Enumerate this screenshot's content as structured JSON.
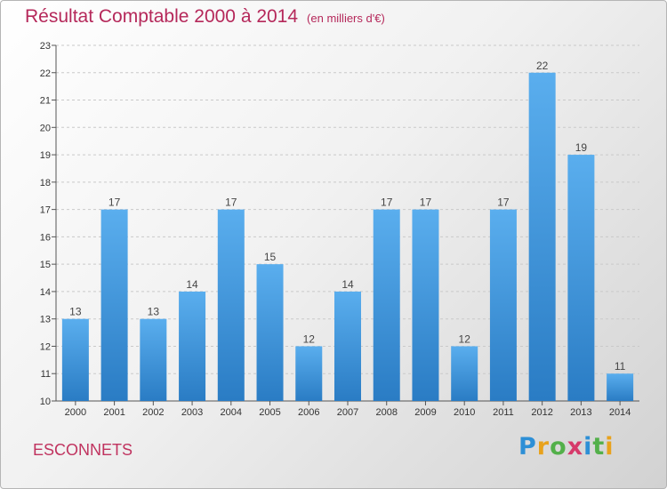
{
  "title": "Résultat Comptable 2000 à 2014",
  "subtitle": "(en milliers d'€)",
  "commune": "ESCONNETS",
  "logo": {
    "letters": [
      {
        "ch": "P",
        "color": "#2d8fd6"
      },
      {
        "ch": "r",
        "color": "#e8a21c"
      },
      {
        "ch": "o",
        "color": "#53b04a"
      },
      {
        "ch": "x",
        "color": "#d63a6a"
      },
      {
        "ch": "i",
        "color": "#2d8fd6"
      },
      {
        "ch": "t",
        "color": "#53b04a"
      },
      {
        "ch": "i",
        "color": "#e8a21c"
      }
    ]
  },
  "chart_data": {
    "type": "bar",
    "categories": [
      "2000",
      "2001",
      "2002",
      "2003",
      "2004",
      "2005",
      "2006",
      "2007",
      "2008",
      "2009",
      "2010",
      "2011",
      "2012",
      "2013",
      "2014"
    ],
    "values": [
      13,
      17,
      13,
      14,
      17,
      15,
      12,
      14,
      17,
      17,
      12,
      17,
      22,
      19,
      11
    ],
    "title": "Résultat Comptable 2000 à 2014",
    "xlabel": "",
    "ylabel": "",
    "ylim": [
      10,
      23
    ],
    "yticks": [
      10,
      11,
      12,
      13,
      14,
      15,
      16,
      17,
      18,
      19,
      20,
      21,
      22,
      23
    ],
    "grid": true,
    "bar_color": "#3f95dd"
  }
}
